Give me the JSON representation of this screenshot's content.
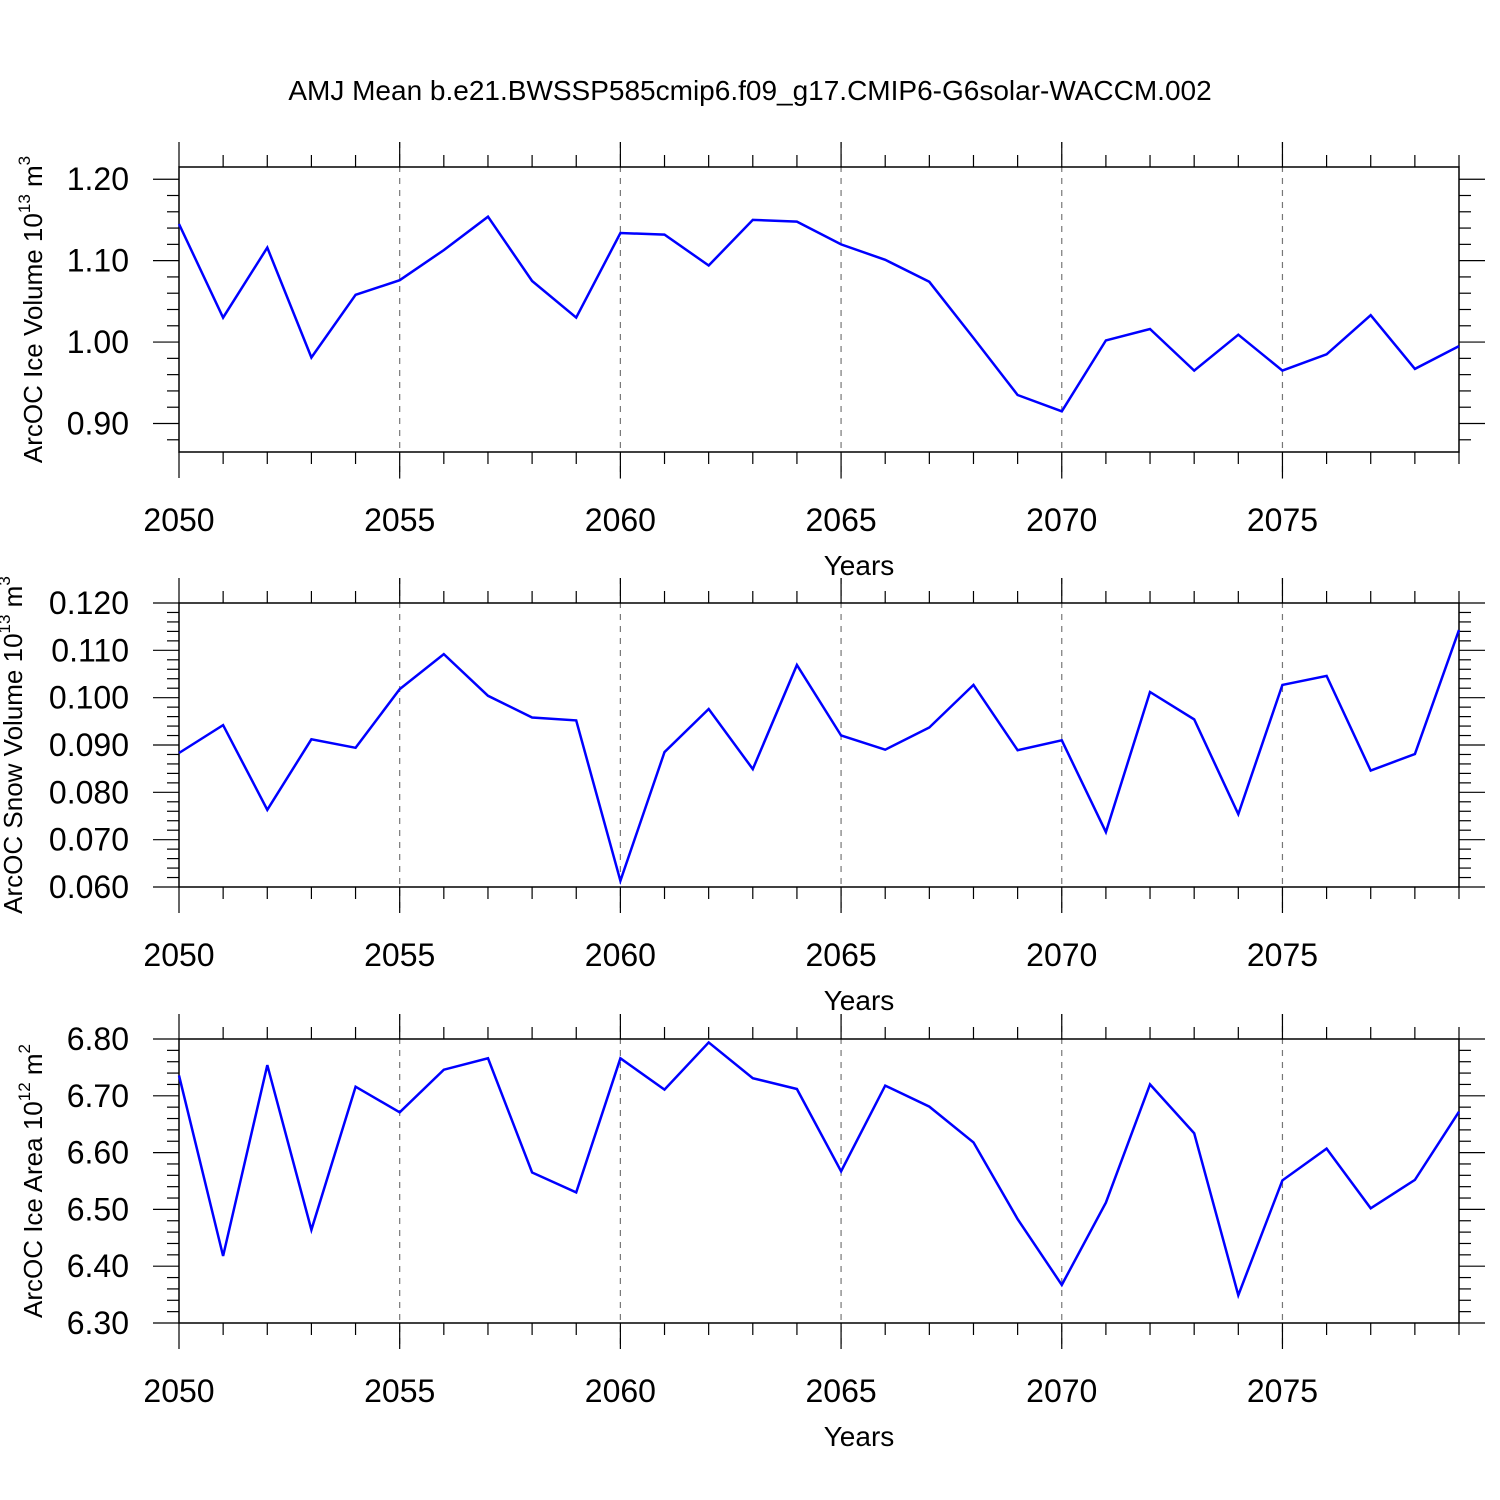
{
  "chart_data": [
    {
      "type": "line",
      "title": "AMJ Mean b.e21.BWSSP585cmip6.f09_g17.CMIP6-G6solar-WACCM.002",
      "xlabel": "Years",
      "ylabel": "ArcOC Ice Volume 10",
      "ylabel_exp": "13",
      "ylabel_unit": " m",
      "ylabel_unit_exp": "3",
      "xlim": [
        2050,
        2079
      ],
      "ylim": [
        0.865,
        1.215
      ],
      "xticks": [
        2050,
        2055,
        2060,
        2065,
        2070,
        2075
      ],
      "xtick_labels": [
        "2050",
        "2055",
        "2060",
        "2065",
        "2070",
        "2075"
      ],
      "yticks": [
        0.9,
        1.0,
        1.1,
        1.2
      ],
      "ytick_labels": [
        "0.90",
        "1.00",
        "1.10",
        "1.20"
      ],
      "ytick_minor": 0.02,
      "grid": "dashed vertical at major x ticks",
      "x": [
        2050,
        2051,
        2052,
        2053,
        2054,
        2055,
        2056,
        2057,
        2058,
        2059,
        2060,
        2061,
        2062,
        2063,
        2064,
        2065,
        2066,
        2067,
        2068,
        2069,
        2070,
        2071,
        2072,
        2073,
        2074,
        2075,
        2076,
        2077,
        2078,
        2079
      ],
      "series": [
        {
          "name": "ArcOC Ice Volume",
          "color": "#0000ff",
          "values": [
            1.145,
            1.03,
            1.116,
            0.981,
            1.058,
            1.076,
            1.113,
            1.154,
            1.075,
            1.03,
            1.134,
            1.132,
            1.094,
            1.15,
            1.148,
            1.12,
            1.101,
            1.074,
            1.005,
            0.935,
            0.915,
            1.002,
            1.016,
            0.965,
            1.009,
            0.965,
            0.985,
            1.033,
            0.967,
            0.995
          ]
        }
      ]
    },
    {
      "type": "line",
      "title": "",
      "xlabel": "Years",
      "ylabel": "ArcOC Snow Volume 10",
      "ylabel_exp": "13",
      "ylabel_unit": " m",
      "ylabel_unit_exp": "3",
      "xlim": [
        2050,
        2079
      ],
      "ylim": [
        0.06,
        0.12
      ],
      "xticks": [
        2050,
        2055,
        2060,
        2065,
        2070,
        2075
      ],
      "xtick_labels": [
        "2050",
        "2055",
        "2060",
        "2065",
        "2070",
        "2075"
      ],
      "yticks": [
        0.06,
        0.07,
        0.08,
        0.09,
        0.1,
        0.11,
        0.12
      ],
      "ytick_labels": [
        "0.060",
        "0.070",
        "0.080",
        "0.090",
        "0.100",
        "0.110",
        "0.120"
      ],
      "ytick_minor": 0.002,
      "grid": "dashed vertical at major x ticks",
      "x": [
        2050,
        2051,
        2052,
        2053,
        2054,
        2055,
        2056,
        2057,
        2058,
        2059,
        2060,
        2061,
        2062,
        2063,
        2064,
        2065,
        2066,
        2067,
        2068,
        2069,
        2070,
        2071,
        2072,
        2073,
        2074,
        2075,
        2076,
        2077,
        2078,
        2079
      ],
      "series": [
        {
          "name": "ArcOC Snow Volume",
          "color": "#0000ff",
          "values": [
            0.0883,
            0.0942,
            0.0763,
            0.0912,
            0.0894,
            0.1018,
            0.1092,
            0.1004,
            0.0958,
            0.0952,
            0.0613,
            0.0885,
            0.0976,
            0.0849,
            0.1069,
            0.092,
            0.089,
            0.0937,
            0.1027,
            0.0889,
            0.091,
            0.0716,
            0.1012,
            0.0954,
            0.0754,
            0.1027,
            0.1046,
            0.0846,
            0.0881,
            0.1143
          ]
        }
      ]
    },
    {
      "type": "line",
      "title": "",
      "xlabel": "Years",
      "ylabel": "ArcOC Ice Area 10",
      "ylabel_exp": "12",
      "ylabel_unit": " m",
      "ylabel_unit_exp": "2",
      "xlim": [
        2050,
        2079
      ],
      "ylim": [
        6.3,
        6.8
      ],
      "xticks": [
        2050,
        2055,
        2060,
        2065,
        2070,
        2075
      ],
      "xtick_labels": [
        "2050",
        "2055",
        "2060",
        "2065",
        "2070",
        "2075"
      ],
      "yticks": [
        6.3,
        6.4,
        6.5,
        6.6,
        6.7,
        6.8
      ],
      "ytick_labels": [
        "6.30",
        "6.40",
        "6.50",
        "6.60",
        "6.70",
        "6.80"
      ],
      "ytick_minor": 0.02,
      "grid": "dashed vertical at major x ticks",
      "x": [
        2050,
        2051,
        2052,
        2053,
        2054,
        2055,
        2056,
        2057,
        2058,
        2059,
        2060,
        2061,
        2062,
        2063,
        2064,
        2065,
        2066,
        2067,
        2068,
        2069,
        2070,
        2071,
        2072,
        2073,
        2074,
        2075,
        2076,
        2077,
        2078,
        2079
      ],
      "series": [
        {
          "name": "ArcOC Ice Area",
          "color": "#0000ff",
          "values": [
            6.736,
            6.418,
            6.754,
            6.464,
            6.716,
            6.671,
            6.746,
            6.766,
            6.565,
            6.53,
            6.766,
            6.711,
            6.794,
            6.731,
            6.712,
            6.567,
            6.718,
            6.681,
            6.618,
            6.483,
            6.367,
            6.512,
            6.72,
            6.634,
            6.349,
            6.551,
            6.607,
            6.502,
            6.552,
            6.672
          ]
        }
      ]
    }
  ]
}
